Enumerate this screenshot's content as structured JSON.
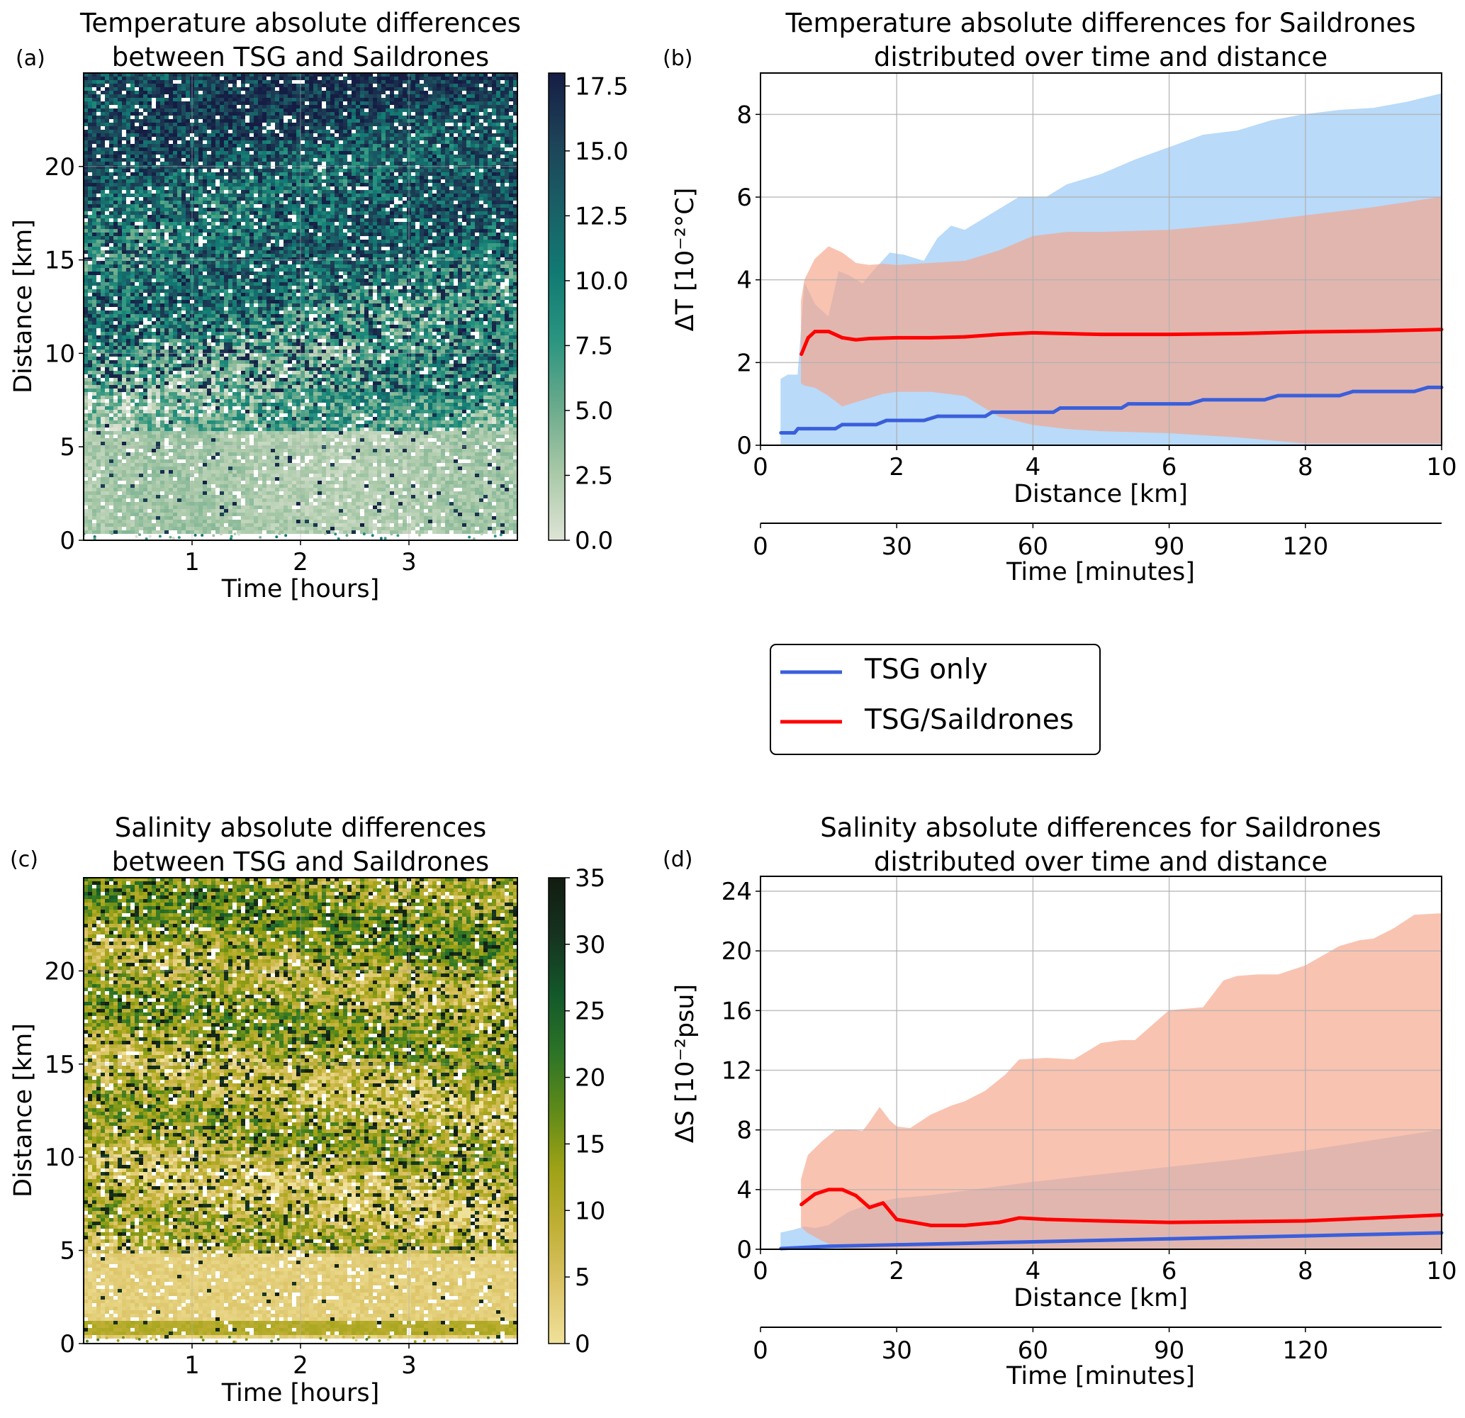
{
  "chart_data": [
    {
      "id": "a",
      "panel_label": "(a)",
      "type": "heatmap",
      "title": [
        "Temperature absolute differences",
        "between TSG and Saildrones"
      ],
      "xlabel": "Time [hours]",
      "ylabel": "Distance [km]",
      "xlim": [
        0,
        4.0
      ],
      "ylim": [
        0,
        25
      ],
      "xticks": [
        1,
        2,
        3
      ],
      "yticks": [
        0,
        5,
        10,
        15,
        20
      ],
      "colorbar": {
        "range": [
          0,
          18
        ],
        "ticks": [
          "0.0",
          "2.5",
          "5.0",
          "7.5",
          "10.0",
          "12.5",
          "15.0",
          "17.5"
        ],
        "tick_values": [
          0,
          2.5,
          5,
          7.5,
          10,
          12.5,
          15,
          17.5
        ],
        "colors": [
          "#dfe4d6",
          "#a9c9a8",
          "#6aaa8c",
          "#2a9580",
          "#117a73",
          "#195f66",
          "#1d4257",
          "#151d44"
        ]
      },
      "description": "Dense scatter of absolute temperature differences; low values (light) at distances below ~6 km, higher values (dark navy) increasing with distance above ~10 km"
    },
    {
      "id": "b",
      "panel_label": "(b)",
      "type": "line",
      "title": [
        "Temperature absolute differences for Saildrones",
        "distributed over time and distance"
      ],
      "xlabel": "Distance [km]",
      "ylabel": "ΔT [10⁻²°C]",
      "xlim": [
        0,
        10
      ],
      "ylim": [
        0,
        9
      ],
      "xticks": [
        0,
        2,
        4,
        6,
        8,
        10
      ],
      "yticks": [
        0,
        2,
        4,
        6,
        8
      ],
      "secondary_xaxis": {
        "label": "Time [minutes]",
        "ticks": [
          0,
          30,
          60,
          90,
          120
        ],
        "lim": [
          0,
          150
        ]
      },
      "grid": true,
      "series": [
        {
          "name": "TSG only",
          "color": "#3a5fdb",
          "band_color": "#9ccbf7",
          "x": [
            0.3,
            0.5,
            0.55,
            0.7,
            1.1,
            1.2,
            1.7,
            1.85,
            2.4,
            2.6,
            3.3,
            3.4,
            4.3,
            4.4,
            5.3,
            5.4,
            6.3,
            6.5,
            7.4,
            7.6,
            8.5,
            8.7,
            9.6,
            9.8,
            10.0
          ],
          "values": [
            0.3,
            0.3,
            0.4,
            0.4,
            0.4,
            0.5,
            0.5,
            0.6,
            0.6,
            0.7,
            0.7,
            0.8,
            0.8,
            0.9,
            0.9,
            1.0,
            1.0,
            1.1,
            1.1,
            1.2,
            1.2,
            1.3,
            1.3,
            1.4,
            1.4
          ],
          "band_x": [
            0.3,
            0.4,
            0.55,
            0.65,
            0.8,
            1.0,
            1.15,
            1.3,
            1.5,
            1.65,
            1.9,
            2.1,
            2.4,
            2.6,
            2.8,
            3.0,
            3.3,
            3.6,
            3.8,
            4.0,
            4.2,
            4.5,
            5.0,
            5.5,
            6.0,
            6.5,
            7.0,
            7.5,
            8.0,
            8.5,
            9.0,
            9.5,
            10.0
          ],
          "band_upper": [
            1.6,
            1.7,
            1.7,
            3.9,
            3.4,
            3.1,
            4.2,
            4.1,
            3.9,
            4.2,
            4.65,
            4.6,
            4.45,
            5.0,
            5.3,
            5.2,
            5.5,
            5.8,
            6.0,
            6.0,
            6.0,
            6.3,
            6.55,
            6.9,
            7.2,
            7.5,
            7.6,
            7.85,
            8.0,
            8.1,
            8.15,
            8.3,
            8.5
          ],
          "band_lower": [
            0,
            0,
            0,
            0,
            0,
            0,
            0,
            0,
            0,
            0,
            0,
            0,
            0,
            0,
            0,
            0,
            0,
            0,
            0,
            0,
            0,
            0,
            0,
            0,
            0,
            0,
            0,
            0,
            0,
            0,
            0,
            0,
            0
          ]
        },
        {
          "name": "TSG/Saildrones",
          "color": "#ff0000",
          "band_color": "#f7a488",
          "x": [
            0.6,
            0.7,
            0.8,
            1.0,
            1.2,
            1.4,
            1.6,
            2.0,
            2.5,
            3.0,
            3.5,
            4.0,
            4.5,
            5.0,
            6.0,
            7.0,
            8.0,
            9.0,
            10.0
          ],
          "values": [
            2.2,
            2.6,
            2.75,
            2.75,
            2.6,
            2.55,
            2.58,
            2.6,
            2.6,
            2.62,
            2.68,
            2.72,
            2.7,
            2.68,
            2.68,
            2.7,
            2.74,
            2.76,
            2.8
          ],
          "band_x": [
            0.6,
            0.65,
            0.8,
            1.0,
            1.2,
            1.4,
            1.6,
            1.8,
            2.0,
            2.5,
            3.0,
            3.5,
            4.0,
            4.5,
            5.0,
            6.0,
            7.0,
            8.0,
            9.0,
            10.0
          ],
          "band_upper": [
            3.5,
            4.0,
            4.5,
            4.8,
            4.65,
            4.4,
            4.35,
            4.38,
            4.35,
            4.4,
            4.45,
            4.7,
            5.05,
            5.15,
            5.15,
            5.2,
            5.35,
            5.55,
            5.75,
            6.0
          ],
          "band_lower": [
            1.5,
            1.45,
            1.4,
            1.2,
            0.95,
            1.05,
            1.15,
            1.25,
            1.3,
            1.3,
            1.2,
            0.7,
            0.5,
            0.4,
            0.35,
            0.3,
            0.2,
            0.05,
            0.05,
            0.05
          ]
        }
      ]
    },
    {
      "id": "c",
      "panel_label": "(c)",
      "type": "heatmap",
      "title": [
        "Salinity absolute differences",
        "between TSG and Saildrones"
      ],
      "xlabel": "Time [hours]",
      "ylabel": "Distance [km]",
      "xlim": [
        0,
        4.0
      ],
      "ylim": [
        0,
        25
      ],
      "xticks": [
        1,
        2,
        3
      ],
      "yticks": [
        0,
        5,
        10,
        15,
        20
      ],
      "colorbar": {
        "range": [
          0,
          35
        ],
        "ticks": [
          "0",
          "5",
          "10",
          "15",
          "20",
          "25",
          "30",
          "35"
        ],
        "tick_values": [
          0,
          5,
          10,
          15,
          20,
          25,
          30,
          35
        ],
        "colors": [
          "#f0e19a",
          "#dcc468",
          "#c0b036",
          "#9ea215",
          "#5f8a19",
          "#2c7427",
          "#13582a",
          "#163320",
          "#111c10"
        ]
      },
      "description": "Dense scatter of absolute salinity differences; mostly pale yellow below ~5 km, mixed greens with dark patches at larger distances"
    },
    {
      "id": "d",
      "panel_label": "(d)",
      "type": "line",
      "title": [
        "Salinity absolute differences for Saildrones",
        "distributed over time and distance"
      ],
      "xlabel": "Distance [km]",
      "ylabel": "ΔS [10⁻²psu]",
      "xlim": [
        0,
        10
      ],
      "ylim": [
        0,
        25
      ],
      "xticks": [
        0,
        2,
        4,
        6,
        8,
        10
      ],
      "yticks": [
        0,
        4,
        8,
        12,
        16,
        20,
        24
      ],
      "secondary_xaxis": {
        "label": "Time [minutes]",
        "ticks": [
          0,
          30,
          60,
          90,
          120
        ],
        "lim": [
          0,
          150
        ]
      },
      "grid": true,
      "series": [
        {
          "name": "TSG only",
          "color": "#3a5fdb",
          "band_color": "#9ccbf7",
          "x": [
            0.3,
            1.0,
            2.0,
            3.0,
            4.0,
            5.0,
            6.0,
            7.0,
            8.0,
            9.0,
            10.0
          ],
          "values": [
            0.05,
            0.2,
            0.3,
            0.4,
            0.5,
            0.6,
            0.7,
            0.8,
            0.9,
            1.0,
            1.1
          ],
          "band_x": [
            0.3,
            0.5,
            0.65,
            0.8,
            1.0,
            1.3,
            1.6,
            2.0,
            2.5,
            3.0,
            4.0,
            5.0,
            6.0,
            7.0,
            8.0,
            9.0,
            10.0
          ],
          "band_upper": [
            1.1,
            1.3,
            1.5,
            1.4,
            1.6,
            2.5,
            3.0,
            3.4,
            3.6,
            3.9,
            4.5,
            5.0,
            5.5,
            6.0,
            6.6,
            7.3,
            8.0
          ],
          "band_lower": [
            0,
            0,
            0,
            0,
            0,
            0,
            0,
            0,
            0,
            0,
            0,
            0,
            0,
            0,
            0,
            0,
            0
          ]
        },
        {
          "name": "TSG/Saildrones",
          "color": "#ff0000",
          "band_color": "#f7a488",
          "x": [
            0.6,
            0.8,
            1.0,
            1.2,
            1.4,
            1.6,
            1.8,
            2.0,
            2.5,
            3.0,
            3.5,
            3.8,
            4.2,
            5.0,
            6.0,
            7.0,
            8.0,
            9.0,
            10.0
          ],
          "values": [
            3.0,
            3.7,
            4.0,
            4.0,
            3.6,
            2.8,
            3.1,
            2.0,
            1.6,
            1.6,
            1.8,
            2.1,
            2.0,
            1.9,
            1.8,
            1.85,
            1.9,
            2.1,
            2.3
          ],
          "band_x": [
            0.6,
            0.7,
            0.9,
            1.1,
            1.3,
            1.5,
            1.6,
            1.75,
            1.9,
            2.0,
            2.2,
            2.5,
            2.8,
            3.0,
            3.3,
            3.6,
            3.8,
            4.2,
            4.6,
            5.0,
            5.3,
            5.5,
            6.0,
            6.5,
            6.8,
            7.0,
            7.3,
            7.6,
            8.0,
            8.5,
            8.8,
            9.0,
            9.3,
            9.6,
            10.0
          ],
          "band_upper": [
            4.7,
            6.3,
            7.2,
            7.95,
            8.0,
            7.9,
            8.5,
            9.5,
            8.6,
            8.2,
            8.1,
            9.0,
            9.6,
            9.9,
            10.6,
            11.7,
            12.7,
            12.8,
            12.7,
            13.8,
            14.0,
            14.0,
            16.0,
            16.2,
            18.0,
            18.3,
            18.4,
            18.4,
            19.0,
            20.3,
            20.7,
            20.8,
            21.5,
            22.4,
            22.5
          ],
          "band_lower": [
            1.5,
            1.1,
            0.6,
            0.2,
            0,
            0,
            0,
            0,
            0,
            0,
            0,
            0,
            0,
            0,
            0,
            0,
            0,
            0,
            0,
            0,
            0,
            0,
            0,
            0,
            0,
            0,
            0,
            0,
            0,
            0,
            0,
            0,
            0,
            0,
            0
          ]
        }
      ]
    }
  ],
  "legend": {
    "placement": "center-right between rows",
    "items": [
      {
        "label": "TSG only",
        "color": "#3a5fdb"
      },
      {
        "label": "TSG/Saildrones",
        "color": "#ff0000"
      }
    ]
  }
}
